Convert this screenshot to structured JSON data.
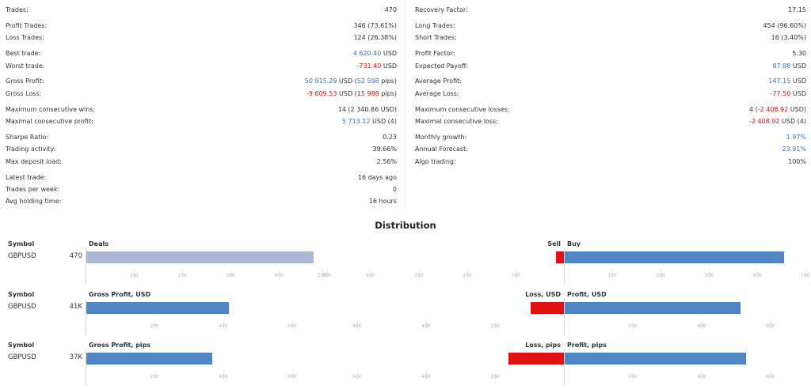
{
  "stats_left": [
    {
      "label": "Trades:",
      "value": "470"
    },
    {
      "label": "Profit Trades:",
      "value": "346 (73.61%)"
    },
    {
      "label": "Loss Trades:",
      "value": "124 (26.38%)"
    },
    {
      "label": "Best trade:",
      "value": "4 620.40",
      "unit": " USD"
    },
    {
      "label": "Worst trade:",
      "value": "-731.40",
      "unit": " USD"
    },
    {
      "label": "Gross Profit:",
      "value": "50 915.29",
      "mid": " USD (",
      "value2": "52 598",
      "suffix": " pips)"
    },
    {
      "label": "Gross Loss:",
      "value": "-9 609.53",
      "mid": " USD (",
      "value2": "15 988",
      "suffix": " pips)"
    },
    {
      "label": "Maximum consecutive wins:",
      "prefix": "14 (",
      "value": "2 340.86",
      "suffix": " USD)"
    },
    {
      "label": "Maximal consecutive profit:",
      "value": "5 713.12",
      "suffix": " USD (4)"
    },
    {
      "label": "Sharpe Ratio:",
      "value": "0.23"
    },
    {
      "label": "Trading activity:",
      "value": "39.66%"
    },
    {
      "label": "Max deposit load:",
      "value": "2.56%"
    },
    {
      "label": "Latest trade:",
      "value": "16 days ago"
    },
    {
      "label": "Trades per week:",
      "value": "0"
    },
    {
      "label": "Avg holding time:",
      "value": "16 hours"
    }
  ],
  "stats_right": [
    {
      "label": "Recovery Factor:",
      "value": "17.15"
    },
    {
      "label": "Long Trades:",
      "value": "454 (96.60%)"
    },
    {
      "label": "Short Trades:",
      "value": "16 (3.40%)"
    },
    {
      "label": "Profit Factor:",
      "value": "5.30"
    },
    {
      "label": "Expected Payoff:",
      "value": "87.88",
      "unit": " USD"
    },
    {
      "label": "Average Profit:",
      "value": "147.15",
      "unit": " USD"
    },
    {
      "label": "Average Loss:",
      "value": "-77.50",
      "unit": " USD"
    },
    {
      "label": "Maximum consecutive losses:",
      "prefix": "4 (",
      "value": "-2 408.92",
      "suffix": " USD)"
    },
    {
      "label": "Maximal consecutive loss:",
      "value": "-2 408.92",
      "suffix": " USD (4)"
    },
    {
      "label": "Monthly growth:",
      "value": "1.97%"
    },
    {
      "label": "Annual Forecast:",
      "value": "23.91%"
    },
    {
      "label": "Algo trading:",
      "value": "100%"
    }
  ],
  "distribution": {
    "title": "Distribution",
    "sections": [
      {
        "symbol_header": "Symbol",
        "total_header": "Deals",
        "left_header": "Sell",
        "right_header": "Buy",
        "symbol": "GBPUSD",
        "total_label": "470",
        "total_value": 470,
        "left_value": 16,
        "right_value": 454,
        "ticks": [
          "100",
          "200",
          "300",
          "400",
          "500"
        ],
        "total_bar_color": "#aab8d3",
        "left_bar_color": "#dd1111",
        "right_bar_color": "#4f86c6"
      },
      {
        "symbol_header": "Symbol",
        "total_header": "Gross Profit, USD",
        "left_header": "Loss, USD",
        "right_header": "Profit, USD",
        "symbol": "GBPUSD",
        "total_label": "41K",
        "total_value": 41300,
        "left_value": 9600,
        "right_value": 50900,
        "ticks": [
          "20K",
          "40K",
          "60K"
        ],
        "total_bar_color": "#4f86c6",
        "left_bar_color": "#dd1111",
        "right_bar_color": "#4f86c6"
      },
      {
        "symbol_header": "Symbol",
        "total_header": "Gross Profit, pips",
        "left_header": "Loss, pips",
        "right_header": "Profit, pips",
        "symbol": "GBPUSD",
        "total_label": "37K",
        "total_value": 36600,
        "left_value": 16000,
        "right_value": 52600,
        "ticks": [
          "20K",
          "40K",
          "60K"
        ],
        "total_bar_color": "#4f86c6",
        "left_bar_color": "#dd1111",
        "right_bar_color": "#4f86c6"
      }
    ]
  }
}
